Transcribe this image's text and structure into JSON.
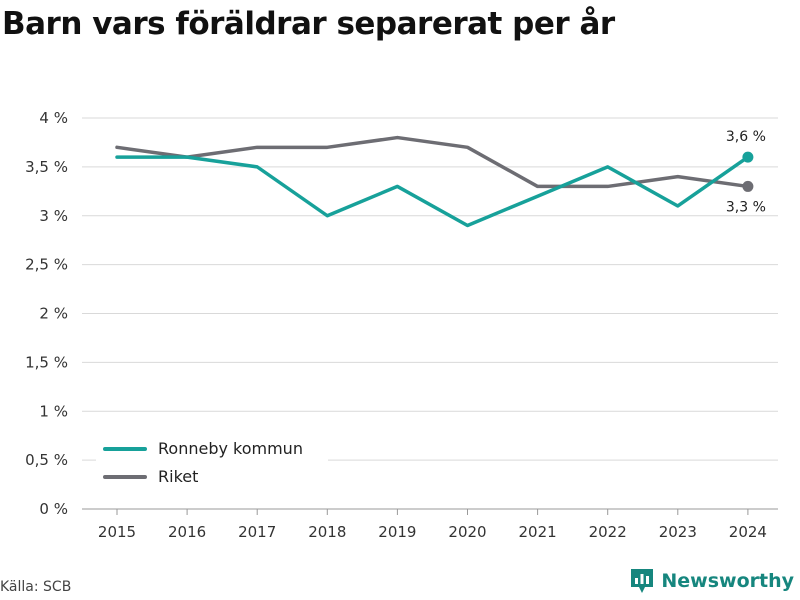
{
  "header": {
    "title": "Barn vars föräldrar separerat per år"
  },
  "footer": {
    "source": "Källa: SCB",
    "brand": "Newsworthy",
    "brand_icon": "bar-chart-icon"
  },
  "colors": {
    "ronneby": "#17a19a",
    "riket": "#6d6d73",
    "grid": "#d9d9d9",
    "axis": "#555555",
    "brand": "#16867e"
  },
  "chart_data": {
    "type": "line",
    "x": [
      "2015",
      "2016",
      "2017",
      "2018",
      "2019",
      "2020",
      "2021",
      "2022",
      "2023",
      "2024"
    ],
    "ylim": [
      0,
      4
    ],
    "yticks": [
      0,
      0.5,
      1,
      1.5,
      2,
      2.5,
      3,
      3.5,
      4
    ],
    "ytick_labels": [
      "0 %",
      "0,5 %",
      "1 %",
      "1,5 %",
      "2 %",
      "2,5 %",
      "3 %",
      "3,5 %",
      "4 %"
    ],
    "grid": true,
    "legend_position": "bottom-left",
    "series": [
      {
        "name": "Ronneby kommun",
        "values": [
          3.6,
          3.6,
          3.5,
          3.0,
          3.3,
          2.9,
          3.2,
          3.5,
          3.1,
          3.6
        ],
        "end_label": "3,6 %"
      },
      {
        "name": "Riket",
        "values": [
          3.7,
          3.6,
          3.7,
          3.7,
          3.8,
          3.7,
          3.3,
          3.3,
          3.4,
          3.3
        ],
        "end_label": "3,3 %"
      }
    ]
  }
}
